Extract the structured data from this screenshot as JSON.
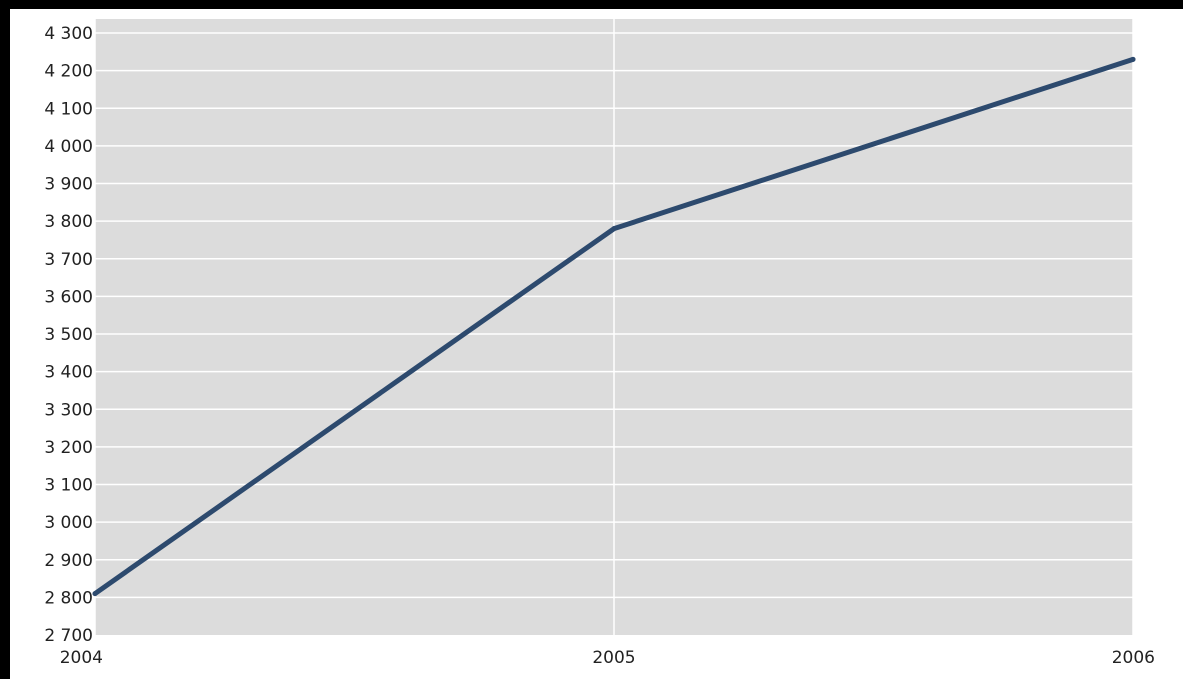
{
  "chart_data": {
    "type": "line",
    "x": [
      2004,
      2005,
      2006
    ],
    "series": [
      {
        "values": [
          2810,
          3780,
          4230
        ],
        "color": "#2d4a6e"
      }
    ],
    "xlabel": "",
    "ylabel": "",
    "ylim": [
      2700,
      4300
    ],
    "xlim": [
      2004,
      2006
    ],
    "yticks": [
      2700,
      2800,
      2900,
      3000,
      3100,
      3200,
      3300,
      3400,
      3500,
      3600,
      3700,
      3800,
      3900,
      4000,
      4100,
      4200,
      4300
    ],
    "ytick_labels": [
      "2 700",
      "2 800",
      "2 900",
      "3 000",
      "3 100",
      "3 200",
      "3 300",
      "3 400",
      "3 500",
      "3 600",
      "3 700",
      "3 800",
      "3 900",
      "4 000",
      "4 100",
      "4 200",
      "4 300"
    ],
    "xtick_labels": [
      "2004",
      "2005",
      "2006"
    ],
    "grid": true,
    "plot_background": "#dcdcdc",
    "grid_color": "#ffffff"
  }
}
